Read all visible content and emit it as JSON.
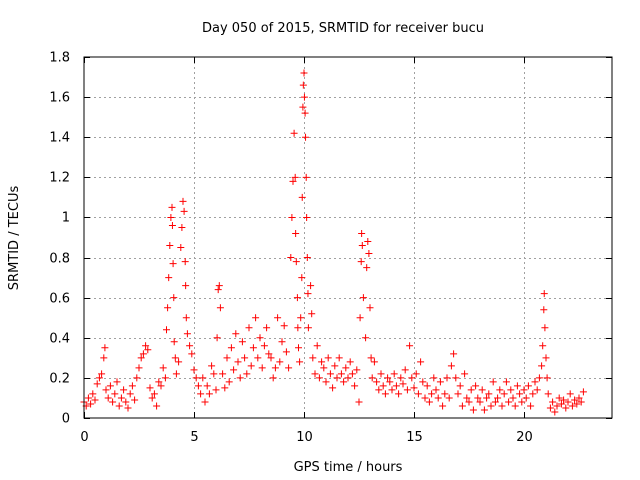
{
  "chart_data": {
    "type": "scatter",
    "title": "Day 050 of 2015, SRMTID for receiver bucu",
    "xlabel": "GPS time / hours",
    "ylabel": "SRMTID / TECUs",
    "xlim": [
      0,
      24
    ],
    "ylim": [
      0,
      1.8
    ],
    "grid": true,
    "marker": "+",
    "colors": {
      "points": "#ff0000",
      "grid": "#a0a0a0",
      "axes": "#000000"
    },
    "x_ticks": [
      {
        "value": 0,
        "label": "0"
      },
      {
        "value": 5,
        "label": "5"
      },
      {
        "value": 10,
        "label": "10"
      },
      {
        "value": 15,
        "label": "15"
      },
      {
        "value": 20,
        "label": "20"
      }
    ],
    "y_ticks": [
      {
        "value": 0,
        "label": "0"
      },
      {
        "value": 0.2,
        "label": "0.2"
      },
      {
        "value": 0.4,
        "label": "0.4"
      },
      {
        "value": 0.6,
        "label": "0.6"
      },
      {
        "value": 0.8,
        "label": "0.8"
      },
      {
        "value": 1.0,
        "label": "1"
      },
      {
        "value": 1.2,
        "label": "1.2"
      },
      {
        "value": 1.4,
        "label": "1.4"
      },
      {
        "value": 1.6,
        "label": "1.6"
      },
      {
        "value": 1.8,
        "label": "1.8"
      }
    ],
    "series": [
      {
        "name": "SRMTID",
        "points": [
          [
            0.0,
            0.08
          ],
          [
            0.1,
            0.06
          ],
          [
            0.2,
            0.1
          ],
          [
            0.3,
            0.07
          ],
          [
            0.4,
            0.12
          ],
          [
            0.5,
            0.09
          ],
          [
            0.6,
            0.17
          ],
          [
            0.7,
            0.2
          ],
          [
            0.8,
            0.22
          ],
          [
            0.9,
            0.3
          ],
          [
            0.95,
            0.35
          ],
          [
            1.0,
            0.14
          ],
          [
            1.1,
            0.1
          ],
          [
            1.2,
            0.16
          ],
          [
            1.3,
            0.08
          ],
          [
            1.4,
            0.12
          ],
          [
            1.5,
            0.18
          ],
          [
            1.6,
            0.06
          ],
          [
            1.7,
            0.1
          ],
          [
            1.8,
            0.14
          ],
          [
            1.9,
            0.08
          ],
          [
            2.0,
            0.05
          ],
          [
            2.1,
            0.12
          ],
          [
            2.2,
            0.16
          ],
          [
            2.3,
            0.09
          ],
          [
            2.4,
            0.2
          ],
          [
            2.5,
            0.25
          ],
          [
            2.6,
            0.3
          ],
          [
            2.7,
            0.32
          ],
          [
            2.8,
            0.36
          ],
          [
            2.9,
            0.34
          ],
          [
            3.0,
            0.15
          ],
          [
            3.1,
            0.1
          ],
          [
            3.2,
            0.12
          ],
          [
            3.3,
            0.06
          ],
          [
            3.4,
            0.18
          ],
          [
            3.5,
            0.16
          ],
          [
            3.6,
            0.25
          ],
          [
            3.7,
            0.2
          ],
          [
            3.75,
            0.44
          ],
          [
            3.8,
            0.55
          ],
          [
            3.85,
            0.7
          ],
          [
            3.9,
            0.86
          ],
          [
            3.95,
            1.0
          ],
          [
            4.0,
            1.05
          ],
          [
            4.02,
            0.96
          ],
          [
            4.05,
            0.77
          ],
          [
            4.08,
            0.6
          ],
          [
            4.1,
            0.38
          ],
          [
            4.15,
            0.3
          ],
          [
            4.2,
            0.22
          ],
          [
            4.3,
            0.28
          ],
          [
            4.4,
            0.85
          ],
          [
            4.45,
            0.95
          ],
          [
            4.5,
            1.08
          ],
          [
            4.55,
            1.03
          ],
          [
            4.6,
            0.78
          ],
          [
            4.62,
            0.66
          ],
          [
            4.65,
            0.5
          ],
          [
            4.7,
            0.42
          ],
          [
            4.8,
            0.36
          ],
          [
            4.9,
            0.32
          ],
          [
            5.0,
            0.24
          ],
          [
            5.1,
            0.2
          ],
          [
            5.2,
            0.16
          ],
          [
            5.3,
            0.12
          ],
          [
            5.4,
            0.2
          ],
          [
            5.5,
            0.08
          ],
          [
            5.6,
            0.16
          ],
          [
            5.7,
            0.12
          ],
          [
            5.8,
            0.26
          ],
          [
            5.9,
            0.22
          ],
          [
            6.0,
            0.14
          ],
          [
            6.05,
            0.4
          ],
          [
            6.1,
            0.64
          ],
          [
            6.15,
            0.66
          ],
          [
            6.2,
            0.55
          ],
          [
            6.3,
            0.22
          ],
          [
            6.4,
            0.15
          ],
          [
            6.5,
            0.3
          ],
          [
            6.6,
            0.18
          ],
          [
            6.7,
            0.35
          ],
          [
            6.8,
            0.24
          ],
          [
            6.9,
            0.42
          ],
          [
            7.0,
            0.28
          ],
          [
            7.1,
            0.2
          ],
          [
            7.2,
            0.38
          ],
          [
            7.3,
            0.3
          ],
          [
            7.4,
            0.22
          ],
          [
            7.5,
            0.45
          ],
          [
            7.6,
            0.26
          ],
          [
            7.7,
            0.35
          ],
          [
            7.8,
            0.5
          ],
          [
            7.9,
            0.3
          ],
          [
            8.0,
            0.4
          ],
          [
            8.1,
            0.25
          ],
          [
            8.2,
            0.36
          ],
          [
            8.3,
            0.45
          ],
          [
            8.4,
            0.32
          ],
          [
            8.5,
            0.3
          ],
          [
            8.6,
            0.2
          ],
          [
            8.7,
            0.25
          ],
          [
            8.8,
            0.5
          ],
          [
            8.9,
            0.28
          ],
          [
            9.0,
            0.38
          ],
          [
            9.1,
            0.46
          ],
          [
            9.2,
            0.33
          ],
          [
            9.3,
            0.25
          ],
          [
            9.4,
            0.8
          ],
          [
            9.45,
            1.0
          ],
          [
            9.5,
            1.18
          ],
          [
            9.55,
            1.42
          ],
          [
            9.6,
            1.2
          ],
          [
            9.62,
            0.92
          ],
          [
            9.65,
            0.78
          ],
          [
            9.7,
            0.6
          ],
          [
            9.72,
            0.45
          ],
          [
            9.75,
            0.35
          ],
          [
            9.8,
            0.28
          ],
          [
            9.85,
            0.5
          ],
          [
            9.9,
            0.7
          ],
          [
            9.92,
            1.1
          ],
          [
            9.95,
            1.55
          ],
          [
            9.97,
            1.66
          ],
          [
            10.0,
            1.72
          ],
          [
            10.02,
            1.6
          ],
          [
            10.05,
            1.52
          ],
          [
            10.07,
            1.4
          ],
          [
            10.1,
            1.2
          ],
          [
            10.12,
            1.0
          ],
          [
            10.15,
            0.8
          ],
          [
            10.18,
            0.62
          ],
          [
            10.2,
            0.45
          ],
          [
            10.3,
            0.66
          ],
          [
            10.35,
            0.52
          ],
          [
            10.4,
            0.3
          ],
          [
            10.5,
            0.22
          ],
          [
            10.6,
            0.36
          ],
          [
            10.7,
            0.2
          ],
          [
            10.8,
            0.28
          ],
          [
            10.9,
            0.25
          ],
          [
            11.0,
            0.18
          ],
          [
            11.1,
            0.3
          ],
          [
            11.2,
            0.22
          ],
          [
            11.3,
            0.15
          ],
          [
            11.4,
            0.26
          ],
          [
            11.5,
            0.2
          ],
          [
            11.6,
            0.3
          ],
          [
            11.7,
            0.22
          ],
          [
            11.8,
            0.18
          ],
          [
            11.9,
            0.25
          ],
          [
            12.0,
            0.2
          ],
          [
            12.1,
            0.28
          ],
          [
            12.2,
            0.22
          ],
          [
            12.3,
            0.16
          ],
          [
            12.4,
            0.24
          ],
          [
            12.5,
            0.08
          ],
          [
            12.55,
            0.5
          ],
          [
            12.6,
            0.78
          ],
          [
            12.62,
            0.92
          ],
          [
            12.65,
            0.86
          ],
          [
            12.7,
            0.6
          ],
          [
            12.8,
            0.4
          ],
          [
            12.85,
            0.75
          ],
          [
            12.9,
            0.88
          ],
          [
            12.95,
            0.82
          ],
          [
            13.0,
            0.55
          ],
          [
            13.05,
            0.3
          ],
          [
            13.1,
            0.2
          ],
          [
            13.2,
            0.28
          ],
          [
            13.3,
            0.18
          ],
          [
            13.4,
            0.14
          ],
          [
            13.5,
            0.22
          ],
          [
            13.6,
            0.16
          ],
          [
            13.7,
            0.12
          ],
          [
            13.8,
            0.2
          ],
          [
            13.9,
            0.18
          ],
          [
            14.0,
            0.14
          ],
          [
            14.1,
            0.22
          ],
          [
            14.2,
            0.16
          ],
          [
            14.3,
            0.12
          ],
          [
            14.4,
            0.2
          ],
          [
            14.5,
            0.17
          ],
          [
            14.6,
            0.24
          ],
          [
            14.7,
            0.14
          ],
          [
            14.8,
            0.36
          ],
          [
            14.9,
            0.2
          ],
          [
            15.0,
            0.15
          ],
          [
            15.1,
            0.22
          ],
          [
            15.2,
            0.12
          ],
          [
            15.3,
            0.28
          ],
          [
            15.4,
            0.18
          ],
          [
            15.5,
            0.1
          ],
          [
            15.6,
            0.16
          ],
          [
            15.7,
            0.08
          ],
          [
            15.8,
            0.12
          ],
          [
            15.9,
            0.2
          ],
          [
            16.0,
            0.14
          ],
          [
            16.1,
            0.1
          ],
          [
            16.2,
            0.18
          ],
          [
            16.3,
            0.06
          ],
          [
            16.4,
            0.12
          ],
          [
            16.5,
            0.2
          ],
          [
            16.6,
            0.1
          ],
          [
            16.7,
            0.26
          ],
          [
            16.8,
            0.32
          ],
          [
            16.9,
            0.2
          ],
          [
            17.0,
            0.12
          ],
          [
            17.1,
            0.16
          ],
          [
            17.2,
            0.06
          ],
          [
            17.3,
            0.22
          ],
          [
            17.4,
            0.1
          ],
          [
            17.5,
            0.08
          ],
          [
            17.6,
            0.14
          ],
          [
            17.7,
            0.04
          ],
          [
            17.8,
            0.16
          ],
          [
            17.9,
            0.1
          ],
          [
            18.0,
            0.08
          ],
          [
            18.1,
            0.14
          ],
          [
            18.2,
            0.04
          ],
          [
            18.3,
            0.1
          ],
          [
            18.4,
            0.12
          ],
          [
            18.5,
            0.06
          ],
          [
            18.6,
            0.18
          ],
          [
            18.7,
            0.08
          ],
          [
            18.8,
            0.1
          ],
          [
            18.9,
            0.14
          ],
          [
            19.0,
            0.06
          ],
          [
            19.1,
            0.12
          ],
          [
            19.2,
            0.18
          ],
          [
            19.3,
            0.08
          ],
          [
            19.4,
            0.14
          ],
          [
            19.5,
            0.1
          ],
          [
            19.6,
            0.06
          ],
          [
            19.7,
            0.16
          ],
          [
            19.8,
            0.12
          ],
          [
            19.9,
            0.08
          ],
          [
            20.0,
            0.14
          ],
          [
            20.1,
            0.1
          ],
          [
            20.2,
            0.16
          ],
          [
            20.3,
            0.06
          ],
          [
            20.4,
            0.12
          ],
          [
            20.5,
            0.18
          ],
          [
            20.6,
            0.14
          ],
          [
            20.7,
            0.2
          ],
          [
            20.8,
            0.26
          ],
          [
            20.85,
            0.36
          ],
          [
            20.9,
            0.54
          ],
          [
            20.92,
            0.62
          ],
          [
            20.95,
            0.45
          ],
          [
            21.0,
            0.3
          ],
          [
            21.05,
            0.2
          ],
          [
            21.1,
            0.12
          ],
          [
            21.2,
            0.05
          ],
          [
            21.3,
            0.08
          ],
          [
            21.4,
            0.03
          ],
          [
            21.5,
            0.06
          ],
          [
            21.6,
            0.1
          ],
          [
            21.7,
            0.07
          ],
          [
            21.8,
            0.09
          ],
          [
            21.9,
            0.05
          ],
          [
            22.0,
            0.08
          ],
          [
            22.1,
            0.12
          ],
          [
            22.2,
            0.06
          ],
          [
            22.3,
            0.09
          ],
          [
            22.4,
            0.07
          ],
          [
            22.5,
            0.1
          ],
          [
            22.6,
            0.08
          ],
          [
            22.7,
            0.13
          ]
        ]
      }
    ]
  }
}
